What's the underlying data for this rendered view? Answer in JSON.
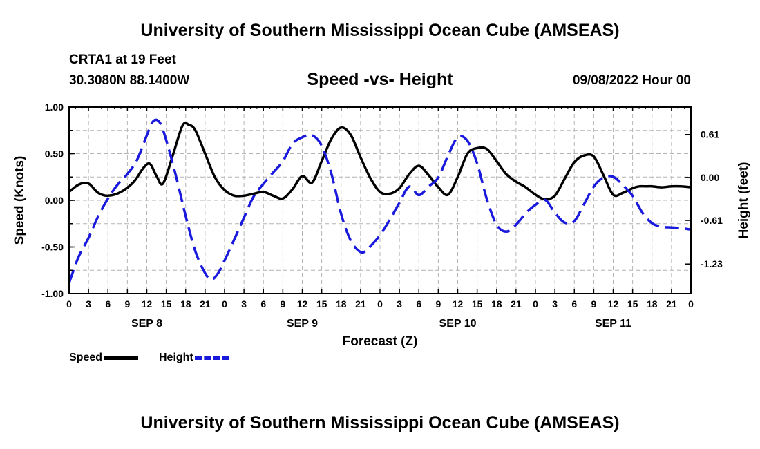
{
  "header": {
    "title": "University of Southern Mississippi Ocean Cube (AMSEAS)",
    "station": "CRTA1 at 19 Feet",
    "coordinates": "30.3080N  88.1400W",
    "subtitle": "Speed -vs- Height",
    "datetime": "09/08/2022 Hour 00"
  },
  "footer": {
    "title": "University of Southern Mississippi Ocean Cube (AMSEAS)"
  },
  "legend": {
    "speed_label": "Speed",
    "height_label": "Height"
  },
  "chart_data": {
    "type": "line",
    "title": "Speed -vs- Height",
    "xlabel": "Forecast (Z)",
    "ylabel_left": "Speed (Knots)",
    "ylabel_right": "Height (feet)",
    "xlim": [
      0,
      96
    ],
    "ylim_left": [
      -1.0,
      1.0
    ],
    "ylim_right": [
      -1.65,
      1.0
    ],
    "left_ticks": [
      "1.00",
      "0.50",
      "0.00",
      "-0.50",
      "-1.00"
    ],
    "right_ticks": [
      "0.61",
      "0.00",
      "-0.61",
      "-1.23"
    ],
    "x_tick_labels": [
      "0",
      "3",
      "6",
      "9",
      "12",
      "15",
      "18",
      "21",
      "0",
      "3",
      "6",
      "9",
      "12",
      "15",
      "18",
      "21",
      "0",
      "3",
      "6",
      "9",
      "12",
      "15",
      "18",
      "21",
      "0",
      "3",
      "6",
      "9",
      "12",
      "15",
      "18",
      "21",
      "0"
    ],
    "day_labels": [
      "SEP 8",
      "SEP 9",
      "SEP 10",
      "SEP 11"
    ],
    "grid": true,
    "legend_position": "bottom-left",
    "series": [
      {
        "name": "Speed",
        "axis": "left",
        "color": "#000000",
        "style": "solid",
        "x": [
          0,
          1.5,
          3,
          4.5,
          6,
          8,
          10,
          11.5,
          12.5,
          13.5,
          14.5,
          16,
          17.5,
          18.5,
          19.5,
          21,
          22.5,
          24,
          25.5,
          27,
          28.5,
          30,
          31.5,
          33,
          34.5,
          36,
          37.5,
          39,
          40.5,
          42,
          43.5,
          45,
          46.5,
          48,
          49.5,
          51,
          52.5,
          54,
          55.5,
          57,
          58.5,
          60,
          61.5,
          63,
          64.5,
          66,
          67.5,
          69,
          70.5,
          72,
          73.5,
          75,
          76.5,
          78,
          79.5,
          81,
          82.5,
          84,
          85.5,
          87,
          88,
          89,
          90,
          91.5,
          93,
          94.5,
          96
        ],
        "values": [
          0.09,
          0.17,
          0.18,
          0.08,
          0.05,
          0.09,
          0.2,
          0.35,
          0.39,
          0.26,
          0.18,
          0.48,
          0.8,
          0.81,
          0.75,
          0.5,
          0.25,
          0.11,
          0.05,
          0.05,
          0.07,
          0.09,
          0.05,
          0.02,
          0.12,
          0.26,
          0.19,
          0.42,
          0.66,
          0.78,
          0.7,
          0.46,
          0.24,
          0.09,
          0.07,
          0.13,
          0.28,
          0.37,
          0.27,
          0.14,
          0.06,
          0.25,
          0.5,
          0.56,
          0.55,
          0.42,
          0.28,
          0.2,
          0.14,
          0.06,
          0.01,
          0.05,
          0.23,
          0.41,
          0.48,
          0.47,
          0.27,
          0.06,
          0.08,
          0.13,
          0.15,
          0.15,
          0.15,
          0.14,
          0.15,
          0.15,
          0.14
        ]
      },
      {
        "name": "Height",
        "axis": "right",
        "color": "#1a1adc",
        "style": "dashed",
        "x": [
          0,
          1.5,
          3,
          4.5,
          6,
          7.5,
          9,
          10.5,
          12,
          13,
          14,
          15,
          16.5,
          18,
          19.5,
          21,
          22,
          23,
          24,
          25.5,
          27,
          28.5,
          30,
          31.5,
          33,
          34.5,
          36,
          37.5,
          39,
          40.5,
          42,
          43.5,
          45,
          46,
          46.5,
          48,
          49.5,
          51,
          52.5,
          54,
          55.5,
          57,
          58.5,
          60,
          61.5,
          63,
          64.5,
          66,
          67.5,
          69,
          70.5,
          72,
          73.5,
          75,
          76.5,
          78,
          79.5,
          81,
          82.5,
          84,
          85.5,
          87,
          88.5,
          90,
          91.5,
          93,
          94.5,
          96
        ],
        "values": [
          -1.5,
          -1.12,
          -0.86,
          -0.55,
          -0.3,
          -0.1,
          0.05,
          0.25,
          0.6,
          0.8,
          0.78,
          0.53,
          0.02,
          -0.55,
          -1.05,
          -1.36,
          -1.45,
          -1.36,
          -1.18,
          -0.88,
          -0.57,
          -0.27,
          -0.09,
          0.07,
          0.23,
          0.48,
          0.57,
          0.6,
          0.45,
          0.05,
          -0.52,
          -0.9,
          -1.06,
          -1.03,
          -0.98,
          -0.82,
          -0.6,
          -0.36,
          -0.13,
          -0.25,
          -0.13,
          0.0,
          0.31,
          0.57,
          0.52,
          0.2,
          -0.31,
          -0.67,
          -0.77,
          -0.67,
          -0.51,
          -0.39,
          -0.32,
          -0.5,
          -0.64,
          -0.62,
          -0.38,
          -0.13,
          0.0,
          0.01,
          -0.11,
          -0.26,
          -0.5,
          -0.65,
          -0.7,
          -0.71,
          -0.72,
          -0.74
        ]
      }
    ]
  }
}
